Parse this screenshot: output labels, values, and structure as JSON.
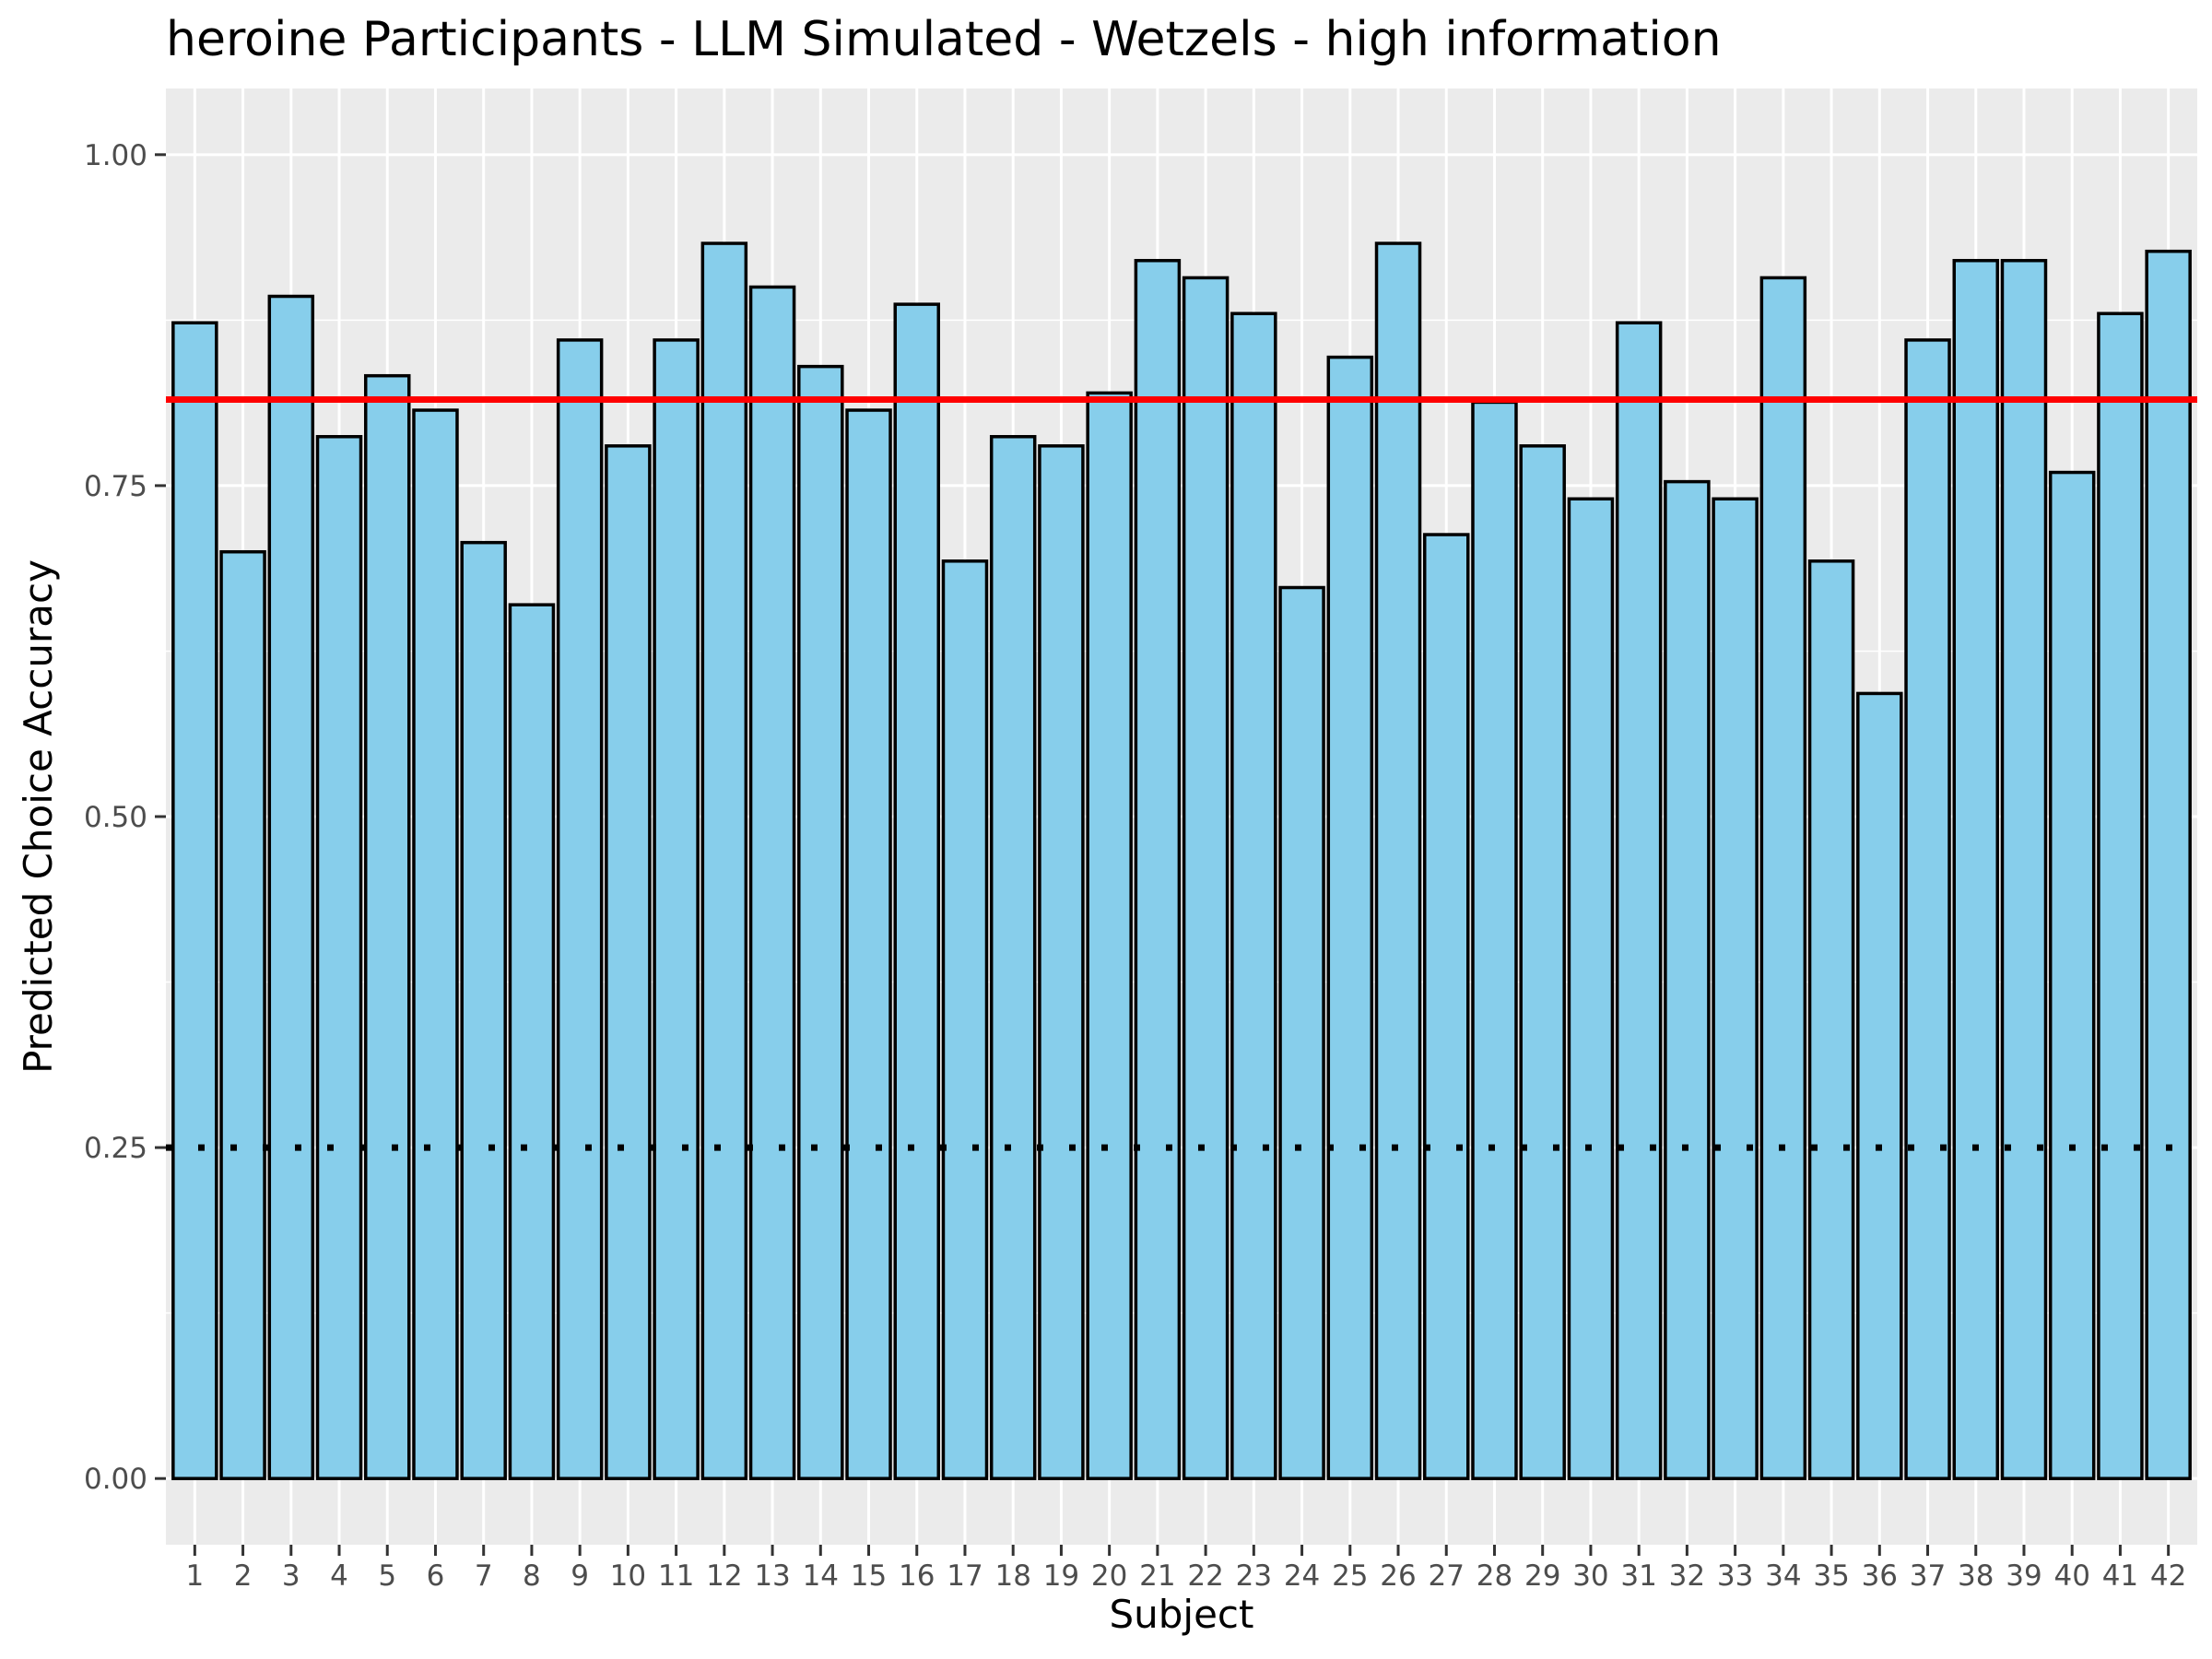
{
  "chart_data": {
    "type": "bar",
    "title": "heroine Participants - LLM Simulated - Wetzels - high information",
    "xlabel": "Subject",
    "ylabel": "Predicted Choice Accuracy",
    "categories": [
      "1",
      "2",
      "3",
      "4",
      "5",
      "6",
      "7",
      "8",
      "9",
      "10",
      "11",
      "12",
      "13",
      "14",
      "15",
      "16",
      "17",
      "18",
      "19",
      "20",
      "21",
      "22",
      "23",
      "24",
      "25",
      "26",
      "27",
      "28",
      "29",
      "30",
      "31",
      "32",
      "33",
      "34",
      "35",
      "36",
      "37",
      "38",
      "39",
      "40",
      "41",
      "42"
    ],
    "values": [
      0.873,
      0.7,
      0.893,
      0.787,
      0.833,
      0.807,
      0.707,
      0.66,
      0.86,
      0.78,
      0.86,
      0.933,
      0.9,
      0.84,
      0.807,
      0.887,
      0.693,
      0.787,
      0.78,
      0.82,
      0.92,
      0.907,
      0.88,
      0.673,
      0.847,
      0.933,
      0.713,
      0.813,
      0.78,
      0.74,
      0.873,
      0.753,
      0.74,
      0.907,
      0.693,
      0.593,
      0.86,
      0.92,
      0.92,
      0.76,
      0.88,
      0.927
    ],
    "yticks": [
      "0.00",
      "0.25",
      "0.50",
      "0.75",
      "1.00"
    ],
    "ylim": [
      -0.05,
      1.05
    ],
    "mean_line": {
      "value": 0.815,
      "color": "#ff0000",
      "style": "solid"
    },
    "chance_line": {
      "value": 0.25,
      "color": "#000000",
      "style": "dotted"
    },
    "bar_fill": "#87ceeb",
    "bar_stroke": "#000000",
    "panel_background": "#ebebeb",
    "grid": true,
    "legend": "none"
  }
}
